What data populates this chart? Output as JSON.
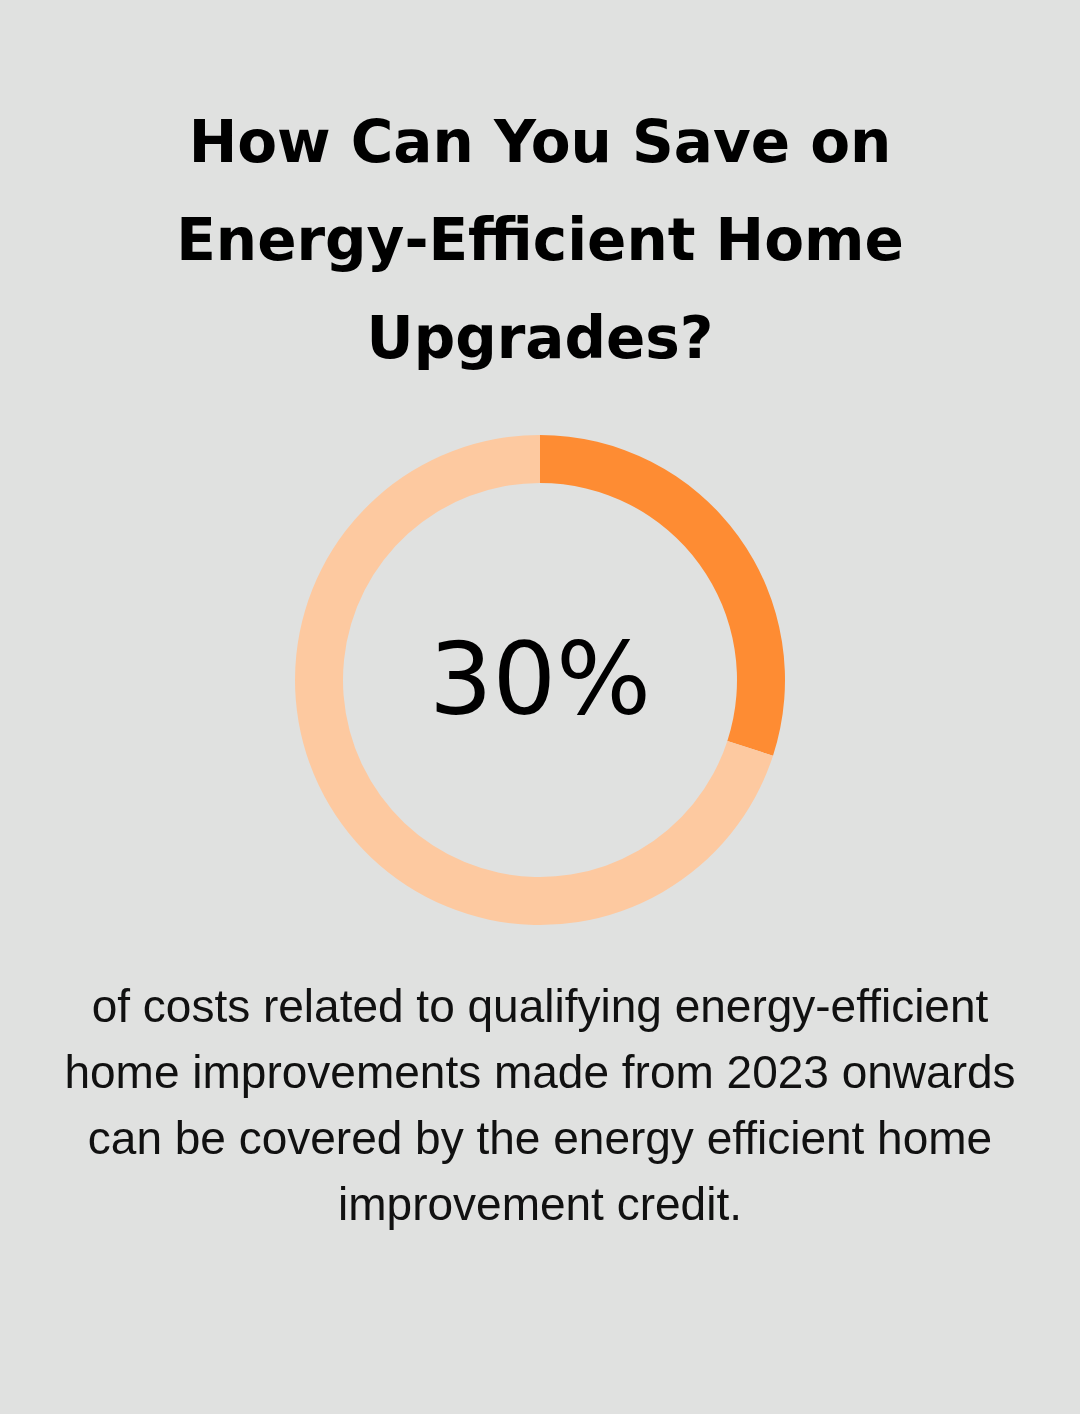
{
  "chart_data": {
    "type": "donut",
    "title": "How Can You Save on Energy-Efficient Home Upgrades?",
    "categories": [
      null,
      null
    ],
    "values": [
      30,
      70
    ],
    "colors": [
      "#fe8c33",
      "#fdc9a0"
    ],
    "value_labels": [
      "30%",
      null
    ],
    "annotations": [
      "of costs related to qualifying energy-efficient home improvements made from 2023 onwards can be covered by the energy efficient home improvement credit."
    ]
  }
}
